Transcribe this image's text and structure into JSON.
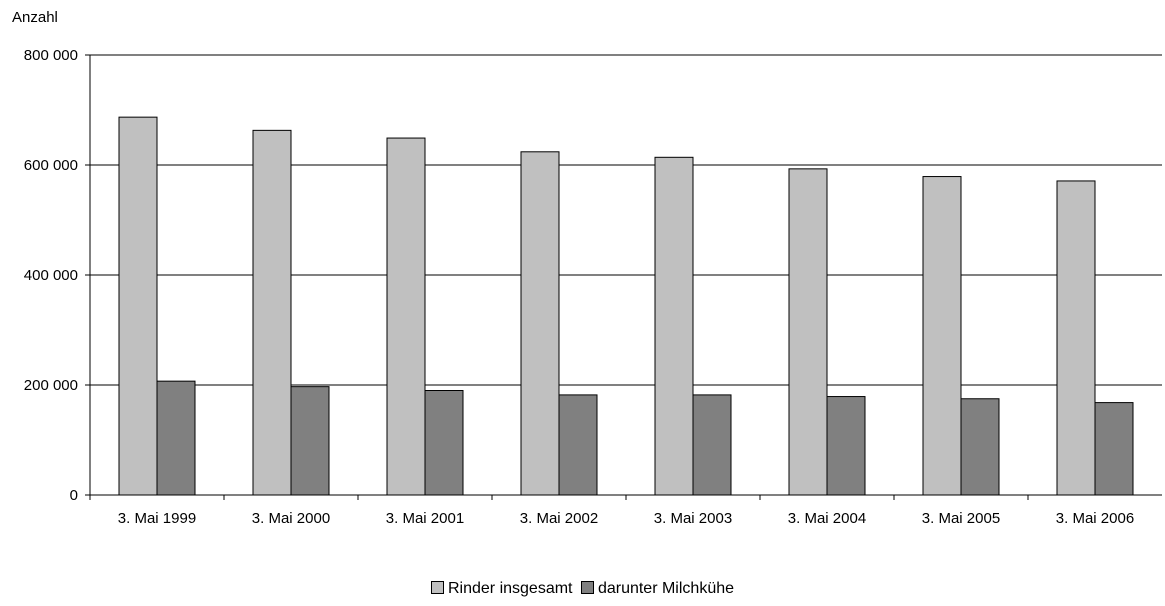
{
  "chart_data": {
    "type": "bar",
    "ylabel": "Anzahl",
    "ylim": [
      0,
      800000
    ],
    "yticks": [
      0,
      200000,
      400000,
      600000,
      800000
    ],
    "ytick_labels": [
      "0",
      "200 000",
      "400 000",
      "600 000",
      "800 000"
    ],
    "grid": true,
    "legend_position": "bottom",
    "categories": [
      "3. Mai 1999",
      "3. Mai 2000",
      "3. Mai 2001",
      "3. Mai 2002",
      "3. Mai 2003",
      "3. Mai 2004",
      "3. Mai 2005",
      "3. Mai 2006"
    ],
    "series": [
      {
        "name": "Rinder insgesamt",
        "color": "#c0c0c0",
        "values": [
          687000,
          663000,
          649000,
          624000,
          614000,
          593000,
          579000,
          571000
        ]
      },
      {
        "name": "darunter Milchkühe",
        "color": "#808080",
        "values": [
          207000,
          197000,
          190000,
          182000,
          182000,
          179000,
          175000,
          168000
        ]
      }
    ]
  }
}
